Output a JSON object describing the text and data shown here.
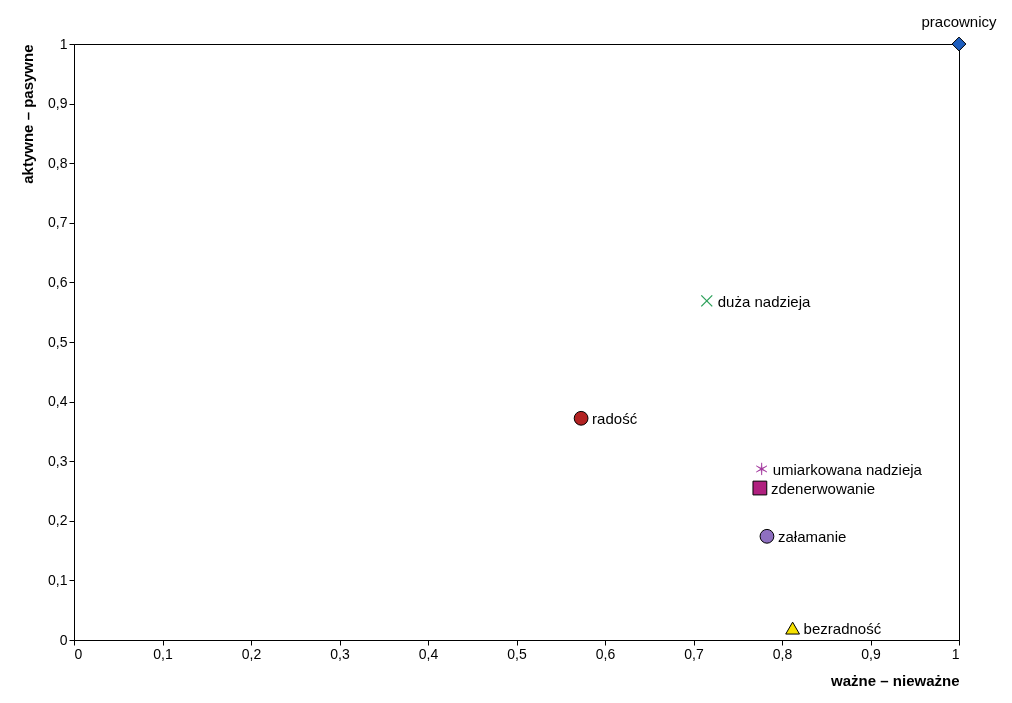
{
  "chart_data": {
    "type": "scatter",
    "xlabel": "ważne – nieważne",
    "ylabel": "aktywne – pasywne",
    "xlim": [
      0,
      1
    ],
    "ylim": [
      0,
      1
    ],
    "xticks": [
      0,
      {
        "value": 0.1,
        "label": "0,1"
      },
      {
        "value": 0.2,
        "label": "0,2"
      },
      {
        "value": 0.3,
        "label": "0,3"
      },
      {
        "value": 0.4,
        "label": "0,4"
      },
      {
        "value": 0.5,
        "label": "0,5"
      },
      {
        "value": 0.6,
        "label": "0,6"
      },
      {
        "value": 0.7,
        "label": "0,7"
      },
      {
        "value": 0.8,
        "label": "0,8"
      },
      {
        "value": 0.9,
        "label": "0,9"
      },
      1
    ],
    "yticks": [
      0,
      {
        "value": 0.1,
        "label": "0,1"
      },
      {
        "value": 0.2,
        "label": "0,2"
      },
      {
        "value": 0.3,
        "label": "0,3"
      },
      {
        "value": 0.4,
        "label": "0,4"
      },
      {
        "value": 0.5,
        "label": "0,5"
      },
      {
        "value": 0.6,
        "label": "0,6"
      },
      {
        "value": 0.7,
        "label": "0,7"
      },
      {
        "value": 0.8,
        "label": "0,8"
      },
      {
        "value": 0.9,
        "label": "0,9"
      },
      1
    ],
    "grid": false,
    "series": [
      {
        "name": "pracownicy",
        "color": "#1f5fbf",
        "marker": "diamond",
        "x": [
          1
        ],
        "values": [
          1
        ]
      },
      {
        "name": "duża nadzieja",
        "color": "#2ca05a",
        "marker": "cross",
        "x": [
          0.715
        ],
        "values": [
          0.569
        ]
      },
      {
        "name": "radość",
        "color": "#b22222",
        "marker": "circle",
        "x": [
          0.573
        ],
        "values": [
          0.372
        ]
      },
      {
        "name": "umiarkowana nadzieja",
        "color": "#a0309a",
        "x": [
          0.777
        ],
        "values": [
          0.287
        ]
      },
      {
        "name": "zdenerwowanie",
        "color": "#b0207f",
        "marker": "square",
        "x": [
          0.775
        ],
        "values": [
          0.255
        ]
      },
      {
        "name": "załamanie",
        "color": "#8e6fc0",
        "marker": "circle",
        "x": [
          0.783
        ],
        "values": [
          0.174
        ]
      },
      {
        "name": "bezradność",
        "color": "#f5e000",
        "marker": "triangle",
        "x": [
          0.812
        ],
        "values": [
          0.02
        ]
      }
    ]
  }
}
